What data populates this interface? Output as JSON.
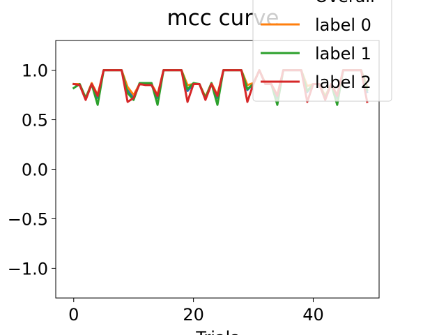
{
  "chart_data": {
    "type": "line",
    "title": "mcc curve",
    "xlabel": "Trials",
    "ylabel": "",
    "xlim": [
      -3,
      51
    ],
    "ylim": [
      -1.3,
      1.3
    ],
    "xticks": [
      0,
      20,
      40
    ],
    "yticks": [
      1.0,
      0.5,
      0.0,
      -0.5,
      -1.0
    ],
    "xtick_labels": [
      "0",
      "20",
      "40"
    ],
    "ytick_labels": [
      "1.0",
      "0.5",
      "0.0",
      "−0.5",
      "−1.0"
    ],
    "grid": false,
    "legend": {
      "placement": "top-right"
    },
    "x": [
      0,
      1,
      2,
      3,
      4,
      5,
      6,
      7,
      8,
      9,
      10,
      11,
      12,
      13,
      14,
      15,
      16,
      17,
      18,
      19,
      20,
      21,
      22,
      23,
      24,
      25,
      26,
      27,
      28,
      29,
      30,
      31,
      32,
      33,
      34,
      35,
      36,
      37,
      38,
      39,
      40,
      41,
      42,
      43,
      44,
      45,
      46,
      47,
      48,
      49
    ],
    "series": [
      {
        "name": "Overall",
        "color": "#1f77b4",
        "values": [
          0.86,
          0.85,
          0.71,
          0.86,
          0.72,
          1.0,
          1.0,
          1.0,
          1.0,
          0.8,
          0.72,
          0.86,
          0.86,
          0.85,
          0.72,
          1.0,
          1.0,
          1.0,
          1.0,
          0.79,
          0.86,
          0.86,
          0.71,
          0.86,
          0.72,
          1.0,
          1.0,
          1.0,
          1.0,
          0.8,
          0.86,
          1.0,
          0.86,
          0.86,
          0.72,
          1.0,
          1.0,
          1.0,
          1.0,
          0.78,
          0.86,
          0.86,
          0.72,
          0.86,
          0.72,
          1.0,
          1.0,
          1.0,
          1.0,
          0.78
        ]
      },
      {
        "name": "label 0",
        "color": "#ff7f0e",
        "values": [
          0.86,
          0.86,
          0.72,
          0.87,
          0.75,
          1.0,
          1.0,
          1.0,
          1.0,
          0.83,
          0.75,
          0.86,
          0.86,
          0.86,
          0.75,
          1.0,
          1.0,
          1.0,
          1.0,
          0.85,
          0.86,
          0.86,
          0.73,
          0.87,
          0.75,
          1.0,
          1.0,
          1.0,
          1.0,
          0.85,
          0.87,
          1.0,
          0.87,
          0.86,
          0.75,
          1.0,
          1.0,
          1.0,
          1.0,
          0.84,
          0.86,
          0.86,
          0.74,
          0.86,
          0.75,
          1.0,
          1.0,
          1.0,
          1.0,
          0.84
        ]
      },
      {
        "name": "label 1",
        "color": "#2ca02c",
        "values": [
          0.82,
          0.86,
          0.72,
          0.86,
          0.65,
          1.0,
          1.0,
          1.0,
          1.0,
          0.77,
          0.7,
          0.87,
          0.87,
          0.87,
          0.65,
          1.0,
          1.0,
          1.0,
          1.0,
          0.81,
          0.87,
          0.86,
          0.72,
          0.87,
          0.65,
          1.0,
          1.0,
          1.0,
          1.0,
          0.81,
          0.86,
          1.0,
          0.86,
          0.86,
          0.65,
          1.0,
          1.0,
          1.0,
          1.0,
          0.79,
          0.86,
          0.86,
          0.72,
          0.86,
          0.65,
          1.0,
          1.0,
          1.0,
          1.0,
          0.8
        ]
      },
      {
        "name": "label 2",
        "color": "#d62728",
        "values": [
          0.86,
          0.85,
          0.7,
          0.86,
          0.74,
          1.0,
          1.0,
          1.0,
          1.0,
          0.68,
          0.72,
          0.86,
          0.85,
          0.85,
          0.74,
          1.0,
          1.0,
          1.0,
          1.0,
          0.68,
          0.86,
          0.86,
          0.7,
          0.86,
          0.74,
          1.0,
          1.0,
          1.0,
          1.0,
          0.68,
          0.86,
          1.0,
          0.86,
          0.86,
          0.74,
          1.0,
          1.0,
          1.0,
          1.0,
          0.68,
          0.86,
          0.86,
          0.7,
          0.86,
          0.74,
          1.0,
          1.0,
          1.0,
          1.0,
          0.68
        ]
      }
    ]
  }
}
